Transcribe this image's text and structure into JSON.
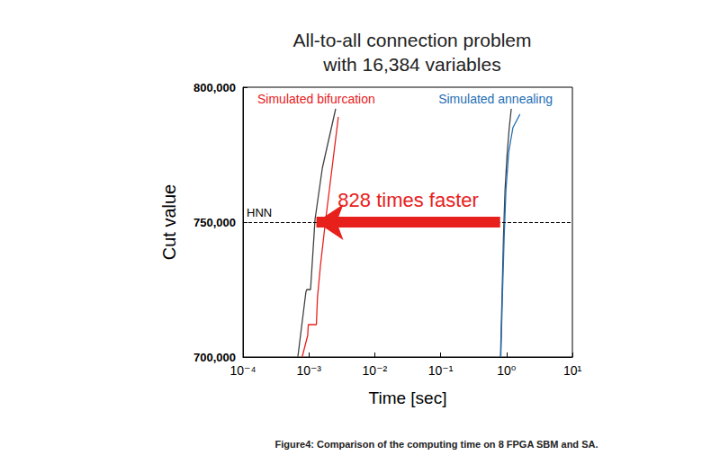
{
  "chart_data": {
    "type": "line",
    "title": "All-to-all connection problem\nwith 16,384 variables",
    "caption": "Figure4: Comparison of the computing time on 8 FPGA SBM and SA.",
    "x_label": "Time [sec]",
    "y_label": "Cut value",
    "log": "x",
    "grid": false,
    "xlim": [
      0.0001,
      10
    ],
    "xticks": [
      {
        "value": 0.0001,
        "label": "10⁻⁴"
      },
      {
        "value": 0.001,
        "label": "10⁻³"
      },
      {
        "value": 0.01,
        "label": "10⁻²"
      },
      {
        "value": 0.1,
        "label": "10⁻¹"
      },
      {
        "value": 1,
        "label": "10⁰"
      },
      {
        "value": 10,
        "label": "10¹"
      }
    ],
    "ylim": [
      700000,
      800000
    ],
    "yticks": [
      {
        "value": 700000,
        "label": "700,000"
      },
      {
        "value": 750000,
        "label": "750,000"
      },
      {
        "value": 800000,
        "label": "800,000"
      }
    ],
    "series": [
      {
        "color": "#404040",
        "x": [
          0.00068,
          0.0009,
          0.00093,
          0.00106,
          0.00124,
          0.0016,
          0.00255
        ],
        "values": [
          700000,
          724000,
          725000,
          725000,
          751000,
          770000,
          792000
        ]
      },
      {
        "name": "Simulated bifurcation",
        "color": "#e8201c",
        "x": [
          0.00079,
          0.00096,
          0.00098,
          0.0013,
          0.00135,
          0.0015,
          0.0018,
          0.0023,
          0.0028
        ],
        "values": [
          700000,
          708000,
          712000,
          712000,
          722000,
          734000,
          751000,
          772000,
          789000
        ]
      },
      {
        "color": "#404040",
        "x": [
          0.81,
          0.86,
          0.9,
          0.95,
          1.02,
          1.1,
          1.18
        ],
        "values": [
          700000,
          725000,
          745000,
          762000,
          775000,
          785000,
          792000
        ]
      },
      {
        "name": "Simulated annealing",
        "color": "#1f6eb5",
        "x": [
          0.82,
          0.87,
          0.92,
          0.98,
          1.08,
          1.25,
          1.6
        ],
        "values": [
          700000,
          724000,
          744000,
          762000,
          776000,
          785000,
          790000
        ]
      }
    ],
    "reference_lines": [
      {
        "label": "HNN",
        "value": 750000,
        "line_style": "dashed",
        "color": "#000000"
      }
    ],
    "annotations": [
      {
        "text": "828 times faster",
        "x_from": 0.8,
        "x_to": 0.0013,
        "y": 750000,
        "color": "#e8201c"
      }
    ]
  }
}
